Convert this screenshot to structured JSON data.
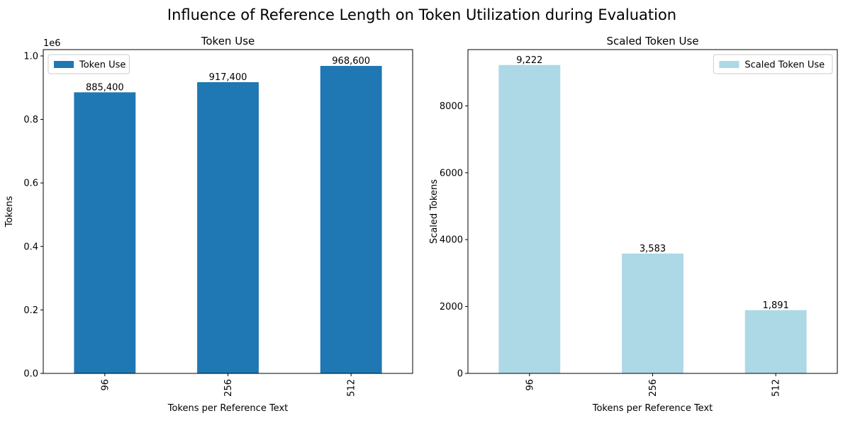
{
  "suptitle": "Influence of Reference Length on Token Utilization during Evaluation",
  "chart_data": [
    {
      "type": "bar",
      "title": "Token Use",
      "xlabel": "Tokens per Reference Text",
      "ylabel": "Tokens",
      "categories": [
        "96",
        "256",
        "512"
      ],
      "series": [
        {
          "name": "Token Use",
          "values": [
            885400,
            917400,
            968600
          ],
          "color": "#1f77b4"
        }
      ],
      "data_labels": [
        "885,400",
        "917,400",
        "968,600"
      ],
      "ylim": [
        0,
        1020000
      ],
      "yticks": [
        0,
        200000,
        400000,
        600000,
        800000,
        1000000
      ],
      "ytick_labels": [
        "0.0",
        "0.2",
        "0.4",
        "0.6",
        "0.8",
        "1.0"
      ],
      "offset_text": "1e6",
      "legend": "top-left",
      "grid": false
    },
    {
      "type": "bar",
      "title": "Scaled Token Use",
      "xlabel": "Tokens per Reference Text",
      "ylabel": "Scaled Tokens",
      "categories": [
        "96",
        "256",
        "512"
      ],
      "series": [
        {
          "name": "Scaled Token Use",
          "values": [
            9222,
            3583,
            1891
          ],
          "color": "#add8e6"
        }
      ],
      "data_labels": [
        "9,222",
        "3,583",
        "1,891"
      ],
      "ylim": [
        0,
        9683
      ],
      "yticks": [
        0,
        2000,
        4000,
        6000,
        8000
      ],
      "ytick_labels": [
        "0",
        "2000",
        "4000",
        "6000",
        "8000"
      ],
      "offset_text": "",
      "legend": "top-right",
      "grid": false
    }
  ]
}
